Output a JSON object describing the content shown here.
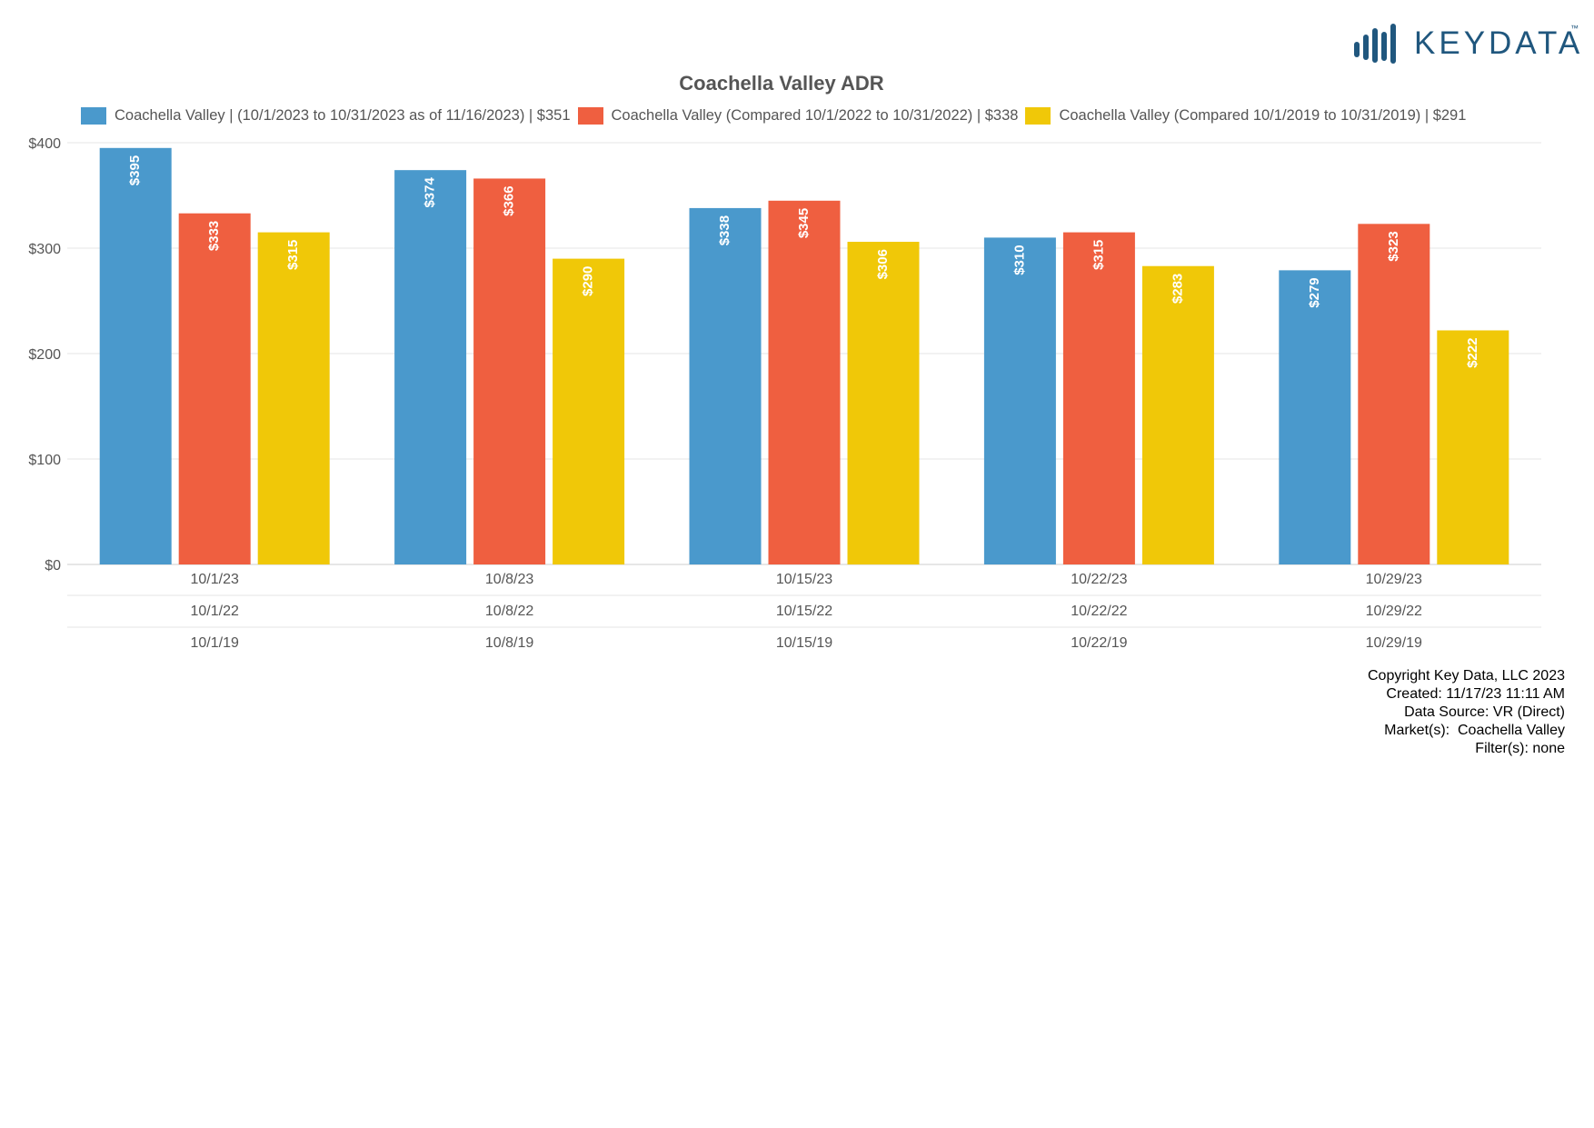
{
  "brand": {
    "name": "KEYDATA",
    "tm": "™",
    "color": "#20577e"
  },
  "chart_data": {
    "type": "bar",
    "title": "Coachella Valley ADR",
    "categories": [
      "10/1/23",
      "10/8/23",
      "10/15/23",
      "10/22/23",
      "10/29/23"
    ],
    "categories_row2": [
      "10/1/22",
      "10/8/22",
      "10/15/22",
      "10/22/22",
      "10/29/22"
    ],
    "categories_row3": [
      "10/1/19",
      "10/8/19",
      "10/15/19",
      "10/22/19",
      "10/29/19"
    ],
    "series": [
      {
        "name": "Coachella Valley | (10/1/2023 to 10/31/2023 as of 11/16/2023) | $351",
        "color": "#4a99cc",
        "values": [
          395,
          374,
          338,
          310,
          279
        ],
        "labels": [
          "$395",
          "$374",
          "$338",
          "$310",
          "$279"
        ]
      },
      {
        "name": "Coachella Valley (Compared 10/1/2022 to 10/31/2022) | $338",
        "color": "#ef5f40",
        "values": [
          333,
          366,
          345,
          315,
          323
        ],
        "labels": [
          "$333",
          "$366",
          "$345",
          "$315",
          "$323"
        ]
      },
      {
        "name": "Coachella Valley (Compared 10/1/2019 to 10/31/2019) | $291",
        "color": "#f0c808",
        "values": [
          315,
          290,
          306,
          283,
          222
        ],
        "labels": [
          "$315",
          "$290",
          "$306",
          "$283",
          "$222"
        ]
      }
    ],
    "yticks": [
      0,
      100,
      200,
      300,
      400
    ],
    "ytick_labels": [
      "$0",
      "$100",
      "$200",
      "$300",
      "$400"
    ],
    "ylim": [
      0,
      400
    ],
    "grid": true,
    "legend": "top"
  },
  "footer": {
    "copyright": "Copyright Key Data, LLC 2023",
    "created": "Created: 11/17/23 11:11 AM",
    "source": "Data Source: VR (Direct)",
    "markets": "Market(s):  Coachella Valley",
    "filters": "Filter(s): none"
  }
}
